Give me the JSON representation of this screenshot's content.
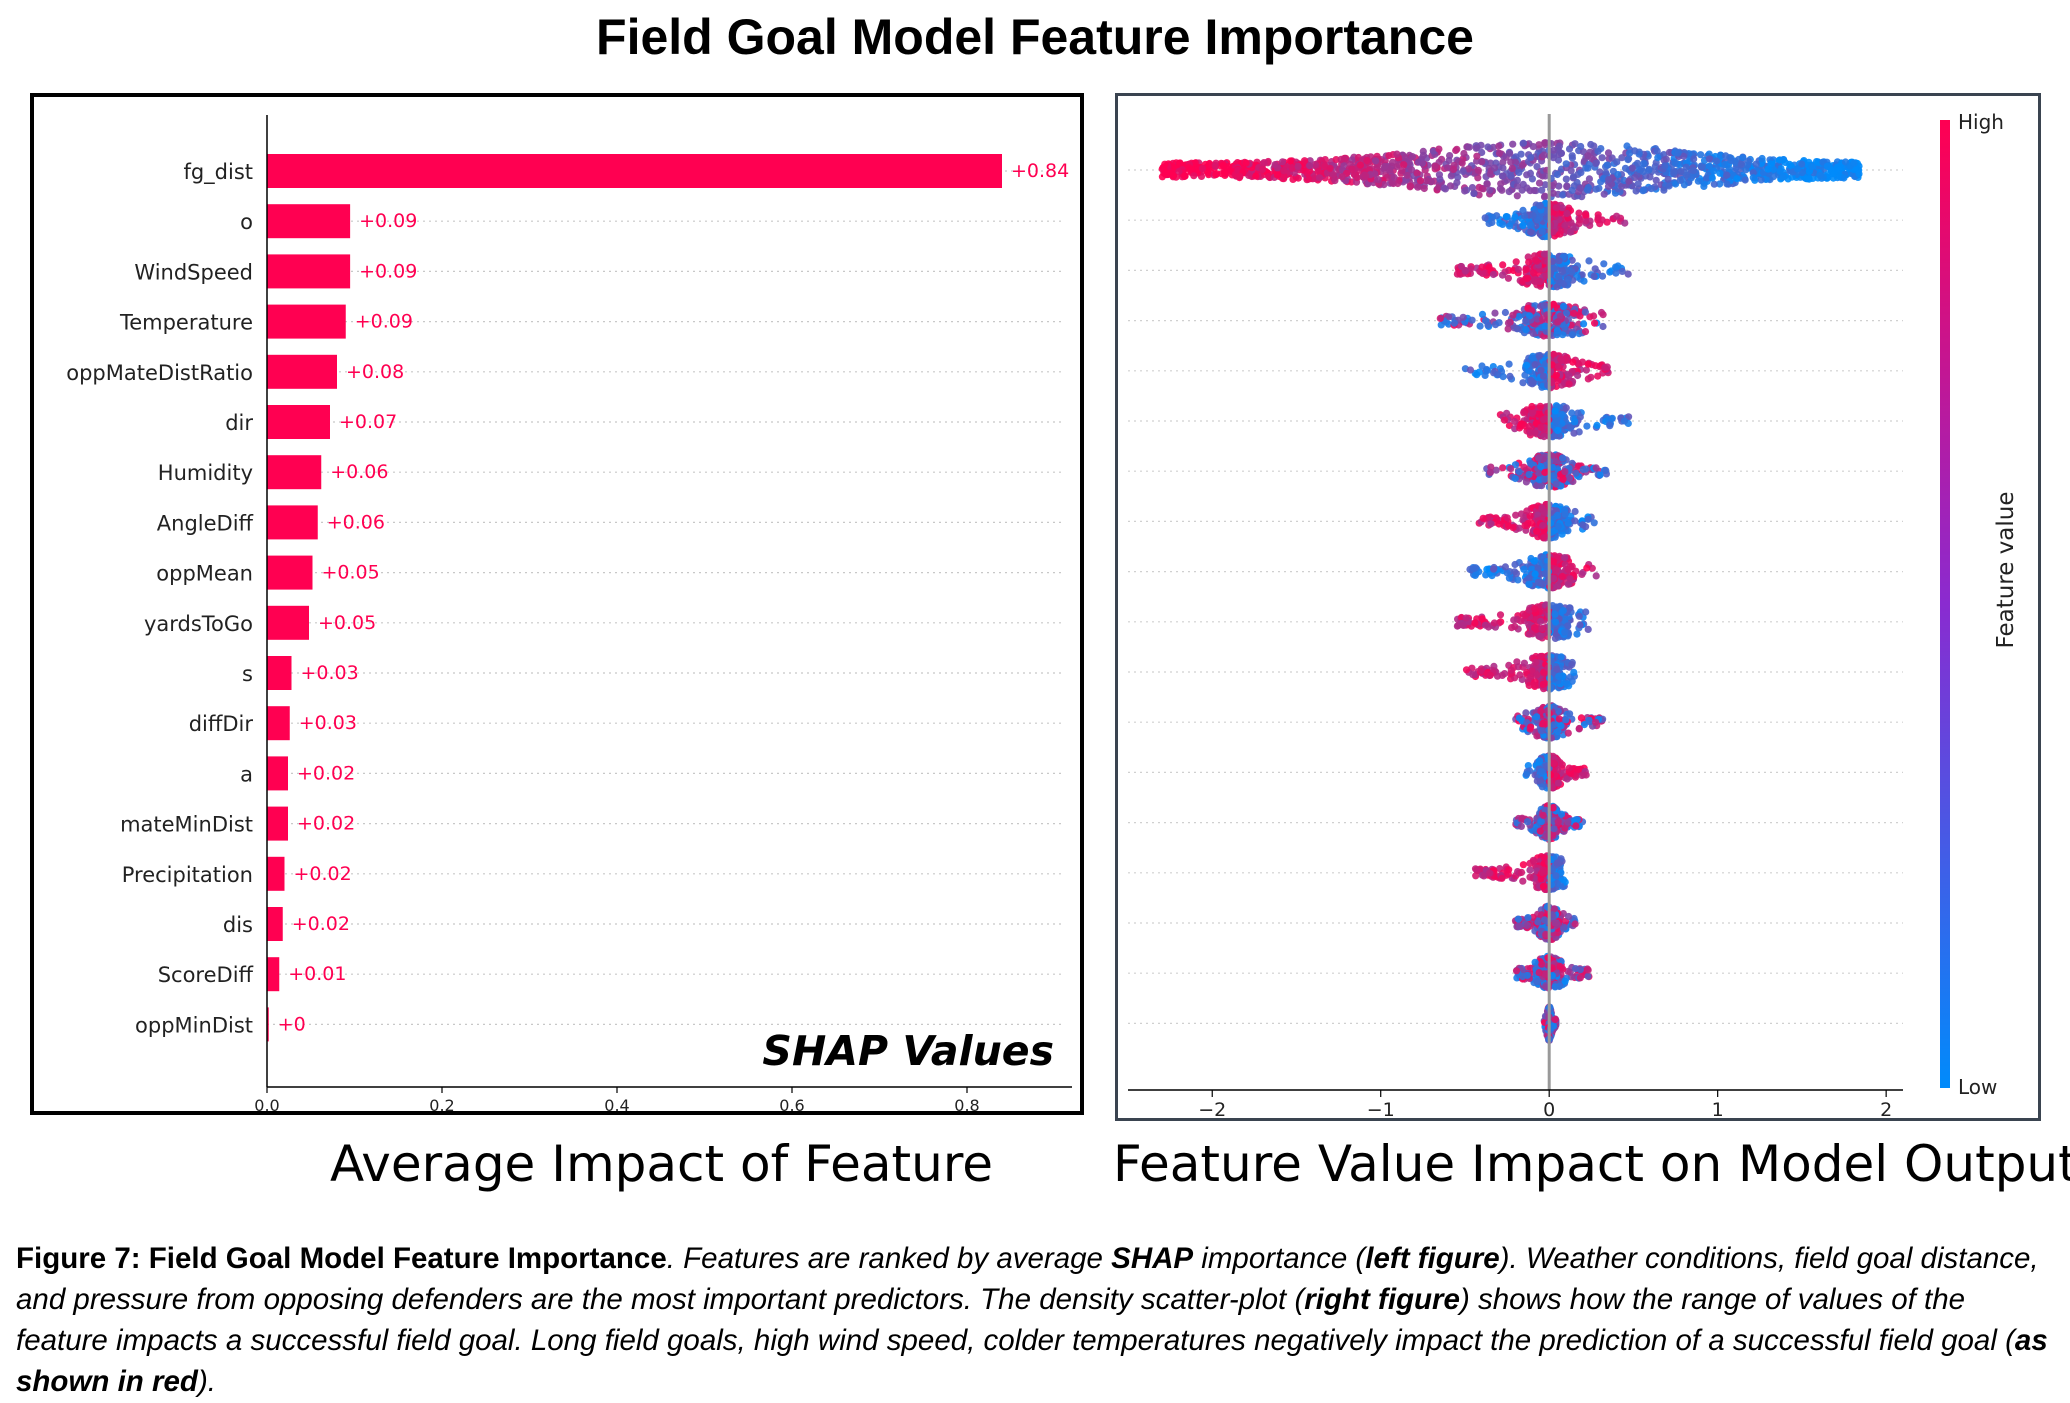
{
  "title": "Field Goal Model Feature Importance",
  "left_subtitle": "Average Impact of Feature",
  "right_subtitle": "Feature Value Impact on Model Output",
  "shap_label": "SHAP Values",
  "caption": {
    "lead": "Figure 7: Field Goal Model Feature Importance",
    "part1": ". Features are ranked by average ",
    "bold1": "SHAP",
    "part2": " importance (",
    "bold2": "left figure",
    "part3": "). Weather conditions, field goal distance, and pressure from opposing defenders are the most important predictors. The density scatter-plot (",
    "bold3": "right figure",
    "part4": ") shows how the range of values of the feature impacts a successful field goal. Long field goals, high wind speed, colder temperatures negatively impact the prediction of a successful field goal (",
    "bold4": "as shown in red",
    "part5": ")."
  },
  "colorbar": {
    "high": "High",
    "low": "Low",
    "label": "Feature value",
    "high_color": "#ff0052",
    "low_color": "#008bfb"
  },
  "colors": {
    "bar": "#ff0051",
    "bar_label": "#ff0051"
  },
  "chart_data": [
    {
      "type": "bar",
      "orientation": "horizontal",
      "categories": [
        "fg_dist",
        "o",
        "WindSpeed",
        "Temperature",
        "oppMateDistRatio",
        "dir",
        "Humidity",
        "AngleDiff",
        "oppMean",
        "yardsToGo",
        "s",
        "diffDir",
        "a",
        "mateMinDist",
        "Precipitation",
        "dis",
        "ScoreDiff",
        "oppMinDist"
      ],
      "values": [
        0.84,
        0.095,
        0.095,
        0.09,
        0.08,
        0.072,
        0.062,
        0.058,
        0.052,
        0.048,
        0.028,
        0.026,
        0.024,
        0.024,
        0.02,
        0.018,
        0.014,
        0.002
      ],
      "value_labels": [
        "+0.84",
        "+0.09",
        "+0.09",
        "+0.09",
        "+0.08",
        "+0.07",
        "+0.06",
        "+0.06",
        "+0.05",
        "+0.05",
        "+0.03",
        "+0.03",
        "+0.02",
        "+0.02",
        "+0.02",
        "+0.02",
        "+0.01",
        "+0"
      ],
      "xlim": [
        0,
        0.92
      ],
      "xticks": [
        0,
        0.2,
        0.4,
        0.6,
        0.8
      ],
      "xtick_labels": [
        "0.0",
        "0.2",
        "0.4",
        "0.6",
        "0.8"
      ],
      "grid": "horizontal dotted"
    },
    {
      "type": "scatter",
      "subtype": "beeswarm",
      "categories": [
        "fg_dist",
        "o",
        "WindSpeed",
        "Temperature",
        "oppMateDistRatio",
        "dir",
        "Humidity",
        "AngleDiff",
        "oppMean",
        "yardsToGo",
        "s",
        "diffDir",
        "a",
        "mateMinDist",
        "Precipitation",
        "dis",
        "ScoreDiff",
        "oppMinDist"
      ],
      "xlim": [
        -2.5,
        2.1
      ],
      "xticks": [
        -2,
        -1,
        0,
        1,
        2
      ],
      "xtick_labels": [
        "−2",
        "−1",
        "0",
        "1",
        "2"
      ],
      "rows": [
        {
          "min": -2.3,
          "max": 1.85,
          "red_side": "left"
        },
        {
          "min": -0.38,
          "max": 0.45,
          "red_side": "right"
        },
        {
          "min": -0.57,
          "max": 0.48,
          "red_side": "left"
        },
        {
          "min": -0.66,
          "max": 0.34,
          "red_side": "mixed"
        },
        {
          "min": -0.5,
          "max": 0.35,
          "red_side": "right"
        },
        {
          "min": -0.31,
          "max": 0.5,
          "red_side": "left"
        },
        {
          "min": -0.38,
          "max": 0.34,
          "red_side": "mixed"
        },
        {
          "min": -0.42,
          "max": 0.29,
          "red_side": "left"
        },
        {
          "min": -0.47,
          "max": 0.28,
          "red_side": "right"
        },
        {
          "min": -0.56,
          "max": 0.24,
          "red_side": "left"
        },
        {
          "min": -0.5,
          "max": 0.15,
          "red_side": "left"
        },
        {
          "min": -0.2,
          "max": 0.32,
          "red_side": "mixed"
        },
        {
          "min": -0.15,
          "max": 0.22,
          "red_side": "right"
        },
        {
          "min": -0.2,
          "max": 0.2,
          "red_side": "mixed"
        },
        {
          "min": -0.45,
          "max": 0.05,
          "red_side": "left"
        },
        {
          "min": -0.2,
          "max": 0.17,
          "red_side": "mixed"
        },
        {
          "min": -0.2,
          "max": 0.24,
          "red_side": "mixed"
        },
        {
          "min": -0.03,
          "max": 0.04,
          "red_side": "mixed"
        }
      ]
    }
  ]
}
